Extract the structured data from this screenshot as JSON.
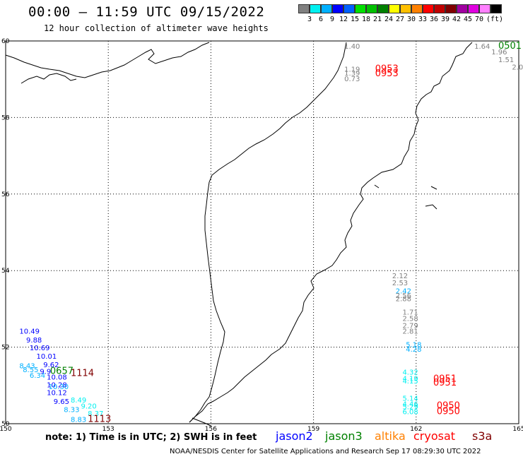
{
  "header": {
    "title": "00:00 – 11:59 UTC 09/15/2022",
    "subtitle": "12 hour collection of altimeter wave heights"
  },
  "legend": {
    "colors": [
      "#808080",
      "#00f0f0",
      "#00b0ff",
      "#0000ff",
      "#0060ff",
      "#00e000",
      "#00c000",
      "#008000",
      "#ffff00",
      "#ffc000",
      "#ff8000",
      "#ff0000",
      "#c00000",
      "#800000",
      "#a000a0",
      "#e000e0",
      "#ff80ff",
      "#000000"
    ],
    "labels": [
      "3",
      "6",
      "9",
      "12",
      "15",
      "18",
      "21",
      "24",
      "27",
      "30",
      "33",
      "36",
      "39",
      "42",
      "45",
      "70",
      "(ft)"
    ]
  },
  "chart_data": {
    "type": "map",
    "xlim": [
      150,
      165
    ],
    "ylim": [
      50,
      60
    ],
    "x_ticks": [
      "150",
      "153",
      "156",
      "159",
      "162",
      "165"
    ],
    "y_ticks": [
      "60",
      "58",
      "56",
      "54",
      "52",
      "50"
    ],
    "grid": true,
    "points": [
      {
        "lon": 159.9,
        "lat": 59.8,
        "label": "1.40",
        "color": "#808080"
      },
      {
        "lon": 159.9,
        "lat": 59.2,
        "label": "1.19",
        "color": "#808080"
      },
      {
        "lon": 159.9,
        "lat": 59.1,
        "label": "1.39",
        "color": "#808080"
      },
      {
        "lon": 159.9,
        "lat": 58.95,
        "label": "0.73",
        "color": "#808080"
      },
      {
        "lon": 160.8,
        "lat": 59.2,
        "label": "0953",
        "color": "#ff0000"
      },
      {
        "lon": 160.8,
        "lat": 59.08,
        "label": "0953",
        "color": "#ff0000"
      },
      {
        "lon": 163.7,
        "lat": 59.8,
        "label": "1.64",
        "color": "#808080"
      },
      {
        "lon": 164.2,
        "lat": 59.65,
        "label": "1.96",
        "color": "#808080"
      },
      {
        "lon": 164.4,
        "lat": 59.45,
        "label": "1.51",
        "color": "#808080"
      },
      {
        "lon": 164.8,
        "lat": 59.25,
        "label": "2.0",
        "color": "#808080"
      },
      {
        "lon": 164.4,
        "lat": 59.8,
        "label": "0501",
        "color": "#008000"
      },
      {
        "lon": 161.3,
        "lat": 53.8,
        "label": "2.12",
        "color": "#808080"
      },
      {
        "lon": 161.3,
        "lat": 53.62,
        "label": "2.53",
        "color": "#808080"
      },
      {
        "lon": 161.4,
        "lat": 53.4,
        "label": "2.42",
        "color": "#00b0ff"
      },
      {
        "lon": 161.4,
        "lat": 53.28,
        "label": "2.56",
        "color": "#808080"
      },
      {
        "lon": 161.4,
        "lat": 53.2,
        "label": "2.88",
        "color": "#808080"
      },
      {
        "lon": 161.6,
        "lat": 52.85,
        "label": "1.71",
        "color": "#808080"
      },
      {
        "lon": 161.6,
        "lat": 52.68,
        "label": "2.58",
        "color": "#808080"
      },
      {
        "lon": 161.6,
        "lat": 52.5,
        "label": "2.79",
        "color": "#808080"
      },
      {
        "lon": 161.6,
        "lat": 52.35,
        "label": "2.81",
        "color": "#808080"
      },
      {
        "lon": 161.7,
        "lat": 52.0,
        "label": "5.18",
        "color": "#00b0ff"
      },
      {
        "lon": 161.7,
        "lat": 51.88,
        "label": "4.28",
        "color": "#00b0ff"
      },
      {
        "lon": 161.6,
        "lat": 51.28,
        "label": "4.32",
        "color": "#00f0f0"
      },
      {
        "lon": 161.6,
        "lat": 51.12,
        "label": "4.19",
        "color": "#00f0f0"
      },
      {
        "lon": 161.6,
        "lat": 51.05,
        "label": "4.15",
        "color": "#00f0f0"
      },
      {
        "lon": 162.5,
        "lat": 51.1,
        "label": "0951",
        "color": "#ff0000"
      },
      {
        "lon": 162.5,
        "lat": 51.0,
        "label": "0951",
        "color": "#ff0000"
      },
      {
        "lon": 161.6,
        "lat": 50.6,
        "label": "5.14",
        "color": "#00f0f0"
      },
      {
        "lon": 161.6,
        "lat": 50.45,
        "label": "4.46",
        "color": "#00f0f0"
      },
      {
        "lon": 161.6,
        "lat": 50.38,
        "label": "5.29",
        "color": "#00f0f0"
      },
      {
        "lon": 161.6,
        "lat": 50.25,
        "label": "6.08",
        "color": "#00f0f0"
      },
      {
        "lon": 162.6,
        "lat": 50.4,
        "label": "0950",
        "color": "#ff0000"
      },
      {
        "lon": 162.6,
        "lat": 50.25,
        "label": "0950",
        "color": "#ff0000"
      },
      {
        "lon": 150.4,
        "lat": 52.35,
        "label": "10.49",
        "color": "#0000ff"
      },
      {
        "lon": 150.6,
        "lat": 52.12,
        "label": "9.88",
        "color": "#0000ff"
      },
      {
        "lon": 150.7,
        "lat": 51.92,
        "label": "10.69",
        "color": "#0000ff"
      },
      {
        "lon": 150.9,
        "lat": 51.7,
        "label": "10.01",
        "color": "#0000ff"
      },
      {
        "lon": 151.1,
        "lat": 51.48,
        "label": "9.62",
        "color": "#0000ff"
      },
      {
        "lon": 150.4,
        "lat": 51.45,
        "label": "8.43",
        "color": "#00b0ff"
      },
      {
        "lon": 150.5,
        "lat": 51.35,
        "label": "8.55",
        "color": "#00b0ff"
      },
      {
        "lon": 151.0,
        "lat": 51.3,
        "label": "9.9",
        "color": "#0000ff"
      },
      {
        "lon": 150.7,
        "lat": 51.2,
        "label": "6.34",
        "color": "#00b0ff"
      },
      {
        "lon": 151.2,
        "lat": 51.15,
        "label": "10.08",
        "color": "#0000ff"
      },
      {
        "lon": 151.2,
        "lat": 50.95,
        "label": "10.28",
        "color": "#0000ff"
      },
      {
        "lon": 151.25,
        "lat": 50.9,
        "label": "10.30",
        "color": "#00b0ff"
      },
      {
        "lon": 151.2,
        "lat": 50.75,
        "label": "10.12",
        "color": "#0000ff"
      },
      {
        "lon": 151.4,
        "lat": 50.52,
        "label": "9.65",
        "color": "#0000ff"
      },
      {
        "lon": 151.9,
        "lat": 50.55,
        "label": "8.49",
        "color": "#00f0f0"
      },
      {
        "lon": 152.2,
        "lat": 50.4,
        "label": "9.20",
        "color": "#00f0f0"
      },
      {
        "lon": 151.7,
        "lat": 50.3,
        "label": "8.33",
        "color": "#00b0ff"
      },
      {
        "lon": 152.4,
        "lat": 50.2,
        "label": "8.37",
        "color": "#00f0f0"
      },
      {
        "lon": 151.9,
        "lat": 50.05,
        "label": "8.83",
        "color": "#00b0ff"
      },
      {
        "lon": 151.3,
        "lat": 51.3,
        "label": "0657",
        "color": "#008000"
      },
      {
        "lon": 151.9,
        "lat": 51.25,
        "label": "1114",
        "color": "#800000"
      },
      {
        "lon": 152.4,
        "lat": 50.05,
        "label": "1113",
        "color": "#800000"
      }
    ]
  },
  "footer": {
    "note": "note: 1) Time is in UTC; 2) SWH is in feet",
    "satellites": [
      {
        "name": "jason2",
        "color": "#0000ff"
      },
      {
        "name": "jason3",
        "color": "#008000"
      },
      {
        "name": "altika",
        "color": "#ff8000"
      },
      {
        "name": "cryosat",
        "color": "#ff0000"
      },
      {
        "name": "s3a",
        "color": "#800000"
      }
    ],
    "credit": "NOAA/NESDIS Center for Satellite Applications and Research    Sep 17 08:29:30 UTC 2022"
  }
}
